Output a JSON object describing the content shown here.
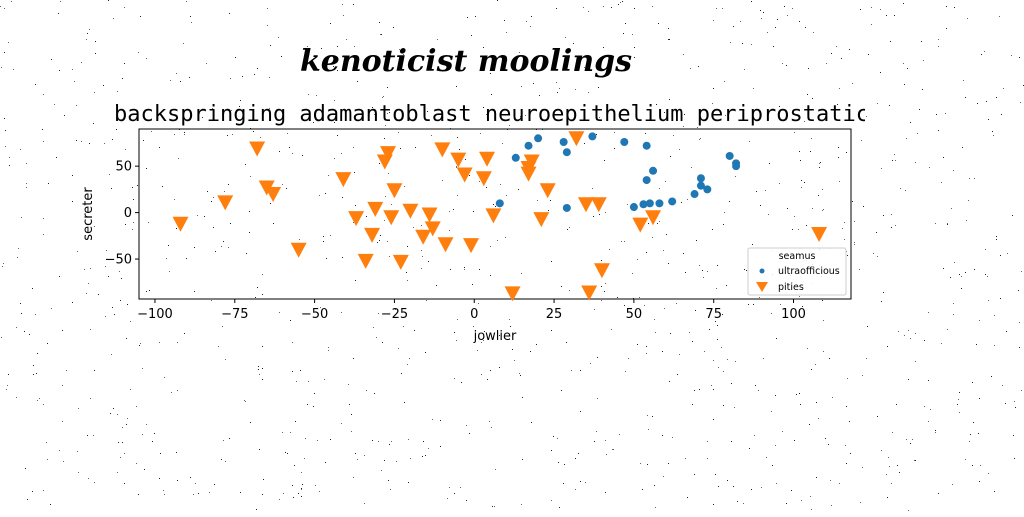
{
  "figure": {
    "suptitle": "kenoticist moolings"
  },
  "chart_data": {
    "type": "scatter",
    "title": "backspringing adamantoblast neuroepithelium periprostatic",
    "xlabel": "jowlier",
    "ylabel": "secreter",
    "xlim": [
      -105,
      118
    ],
    "ylim": [
      -93,
      90
    ],
    "xticks": [
      -100,
      -75,
      -50,
      -25,
      0,
      25,
      50,
      75,
      100
    ],
    "yticks": [
      -50,
      0,
      50
    ],
    "xtick_labels": [
      "−100",
      "−75",
      "−50",
      "−25",
      "0",
      "25",
      "50",
      "75",
      "100"
    ],
    "ytick_labels": [
      "−50",
      "0",
      "50"
    ],
    "grid": false,
    "legend": {
      "title": "seamus",
      "placement": "lower-right"
    },
    "series": [
      {
        "name": "ultraofficious",
        "color": "#1f77b4",
        "marker": "circle",
        "points": [
          [
            8,
            10
          ],
          [
            13,
            59
          ],
          [
            17,
            72
          ],
          [
            20,
            80
          ],
          [
            28,
            76
          ],
          [
            29,
            65
          ],
          [
            29,
            5
          ],
          [
            37,
            82
          ],
          [
            47,
            76
          ],
          [
            50,
            6
          ],
          [
            53,
            9
          ],
          [
            54,
            72
          ],
          [
            54,
            35
          ],
          [
            55,
            10
          ],
          [
            56,
            45
          ],
          [
            58,
            10
          ],
          [
            62,
            12
          ],
          [
            69,
            20
          ],
          [
            71,
            37
          ],
          [
            71,
            29
          ],
          [
            73,
            25
          ],
          [
            80,
            61
          ],
          [
            82,
            53
          ],
          [
            82,
            50
          ]
        ]
      },
      {
        "name": "pities",
        "color": "#ff7f0e",
        "marker": "triangle-down",
        "points": [
          [
            -92,
            -12
          ],
          [
            -78,
            11
          ],
          [
            -68,
            69
          ],
          [
            -65,
            27
          ],
          [
            -63,
            20
          ],
          [
            -55,
            -40
          ],
          [
            -41,
            36
          ],
          [
            -37,
            -6
          ],
          [
            -34,
            -52
          ],
          [
            -32,
            -24
          ],
          [
            -31,
            4
          ],
          [
            -28,
            55
          ],
          [
            -27,
            64
          ],
          [
            -26,
            -5
          ],
          [
            -25,
            24
          ],
          [
            -23,
            -53
          ],
          [
            -20,
            2
          ],
          [
            -16,
            -26
          ],
          [
            -14,
            -2
          ],
          [
            -13,
            -17
          ],
          [
            -10,
            68
          ],
          [
            -9,
            -34
          ],
          [
            -5,
            57
          ],
          [
            -3,
            41
          ],
          [
            -1,
            -35
          ],
          [
            3,
            37
          ],
          [
            4,
            58
          ],
          [
            6,
            -3
          ],
          [
            12,
            -87
          ],
          [
            17,
            48
          ],
          [
            17,
            42
          ],
          [
            18,
            55
          ],
          [
            21,
            -7
          ],
          [
            23,
            24
          ],
          [
            32,
            80
          ],
          [
            35,
            9
          ],
          [
            36,
            -86
          ],
          [
            39,
            9
          ],
          [
            40,
            -62
          ],
          [
            52,
            -13
          ],
          [
            56,
            -5
          ],
          [
            108,
            -23
          ]
        ]
      }
    ]
  }
}
